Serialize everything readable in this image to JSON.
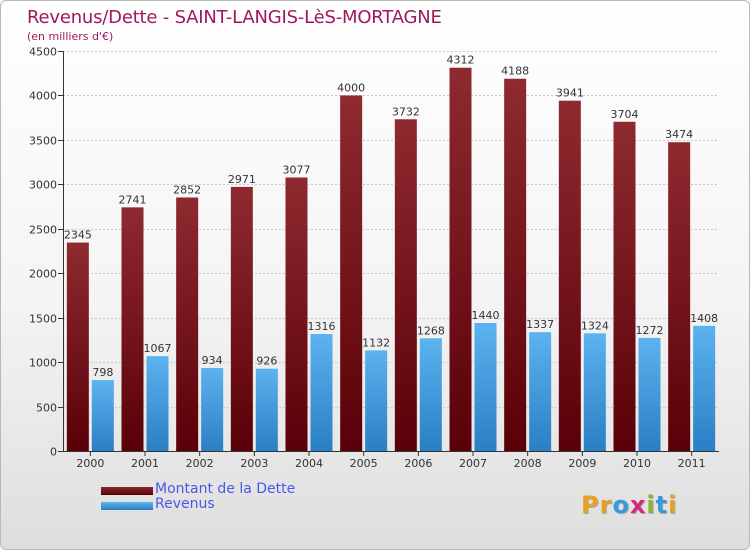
{
  "header": {
    "title": "Revenus/Dette - SAINT-LANGIS-LèS-MORTAGNE",
    "subtitle": "(en milliers d'€)"
  },
  "legend": {
    "items": [
      {
        "label": "Montant de la Dette",
        "color": "#6b0d14"
      },
      {
        "label": "Revenus",
        "color": "#4aa3e6"
      }
    ]
  },
  "logo": {
    "text": "Proxiti",
    "letters": [
      "P",
      "r",
      "o",
      "x",
      "i",
      "t",
      "i"
    ],
    "colors": [
      "#e8a020",
      "#e8a020",
      "#3a9ad9",
      "#d8287a",
      "#8ab82c",
      "#3a9ad9",
      "#e8a020"
    ]
  },
  "colors": {
    "debt_top": "#8e2a30",
    "debt_bottom": "#5a0008",
    "rev_top": "#5cb3ef",
    "rev_bottom": "#2a7fc4",
    "title": "#a0185a"
  },
  "chart_data": {
    "type": "bar",
    "title": "Revenus/Dette - SAINT-LANGIS-LèS-MORTAGNE",
    "ylabel": "(en milliers d'€)",
    "xlabel": "",
    "categories": [
      "2000",
      "2001",
      "2002",
      "2003",
      "2004",
      "2005",
      "2006",
      "2007",
      "2008",
      "2009",
      "2010",
      "2011"
    ],
    "series": [
      {
        "name": "Montant de la Dette",
        "values": [
          2345,
          2741,
          2852,
          2971,
          3077,
          4000,
          3732,
          4312,
          4188,
          3941,
          3704,
          3474
        ]
      },
      {
        "name": "Revenus",
        "values": [
          798,
          1067,
          934,
          926,
          1316,
          1132,
          1268,
          1440,
          1337,
          1324,
          1272,
          1408
        ]
      }
    ],
    "ylim": [
      0,
      4500
    ],
    "yticks": [
      0,
      500,
      1000,
      1500,
      2000,
      2500,
      3000,
      3500,
      4000,
      4500
    ],
    "grid": true,
    "legend_position": "bottom-left"
  }
}
